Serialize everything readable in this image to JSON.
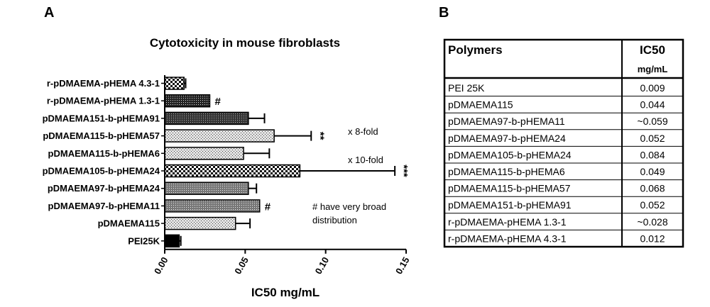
{
  "panel_a_label": "A",
  "panel_b_label": "B",
  "chart_data": {
    "type": "bar",
    "orientation": "horizontal",
    "title": "Cytotoxicity in mouse fibroblasts",
    "xlabel": "IC50 mg/mL",
    "ylabel": "",
    "xlim": [
      0,
      0.15
    ],
    "x_ticks": [
      "0.00",
      "0.05",
      "0.10",
      "0.15"
    ],
    "grid": false,
    "legend": "none",
    "categories": [
      "r-pDMAEMA-pHEMA 4.3-1",
      "r-pDMAEMA-pHEMA 1.3-1",
      "pDMAEMA151-b-pHEMA91",
      "pDMAEMA115-b-pHEMA57",
      "pDMAEMA115-b-pHEMA6",
      "pDMAEMA105-b-pHEMA24",
      "pDMAEMA97-b-pHEMA24",
      "pDMAEMA97-b-pHEMA11",
      "pDMAEMA115",
      "PEI25K"
    ],
    "values": [
      0.012,
      0.028,
      0.052,
      0.068,
      0.049,
      0.084,
      0.052,
      0.059,
      0.044,
      0.009
    ],
    "errors": [
      0.001,
      0.0,
      0.01,
      0.023,
      0.016,
      0.059,
      0.005,
      0.0,
      0.009,
      0.001
    ],
    "patterns": [
      "check",
      "dense",
      "dots-dark",
      "dots-light",
      "dots-light",
      "check",
      "dots-mid",
      "dots-mid",
      "dots-light",
      "solid"
    ],
    "bar_marks": [
      "",
      "#",
      "",
      "**",
      "",
      "***",
      "",
      "#",
      "",
      ""
    ],
    "annotations": [
      "x 8-fold",
      "x 10-fold",
      "# have very broad",
      "distribution"
    ]
  },
  "table": {
    "headers": [
      "Polymers",
      "IC50"
    ],
    "unit": "mg/mL",
    "rows": [
      [
        "PEI 25K",
        "0.009"
      ],
      [
        "pDMAEMA115",
        "0.044"
      ],
      [
        "pDMAEMA97-b-pHEMA11",
        "~0.059"
      ],
      [
        "pDMAEMA97-b-pHEMA24",
        "0.052"
      ],
      [
        "pDMAEMA105-b-pHEMA24",
        "0.084"
      ],
      [
        "pDMAEMA115-b-pHEMA6",
        "0.049"
      ],
      [
        "pDMAEMA115-b-pHEMA57",
        "0.068"
      ],
      [
        "pDMAEMA151-b-pHEMA91",
        "0.052"
      ],
      [
        "r-pDMAEMA-pHEMA 1.3-1",
        "~0.028"
      ],
      [
        "r-pDMAEMA-pHEMA 4.3-1",
        "0.012"
      ]
    ]
  }
}
